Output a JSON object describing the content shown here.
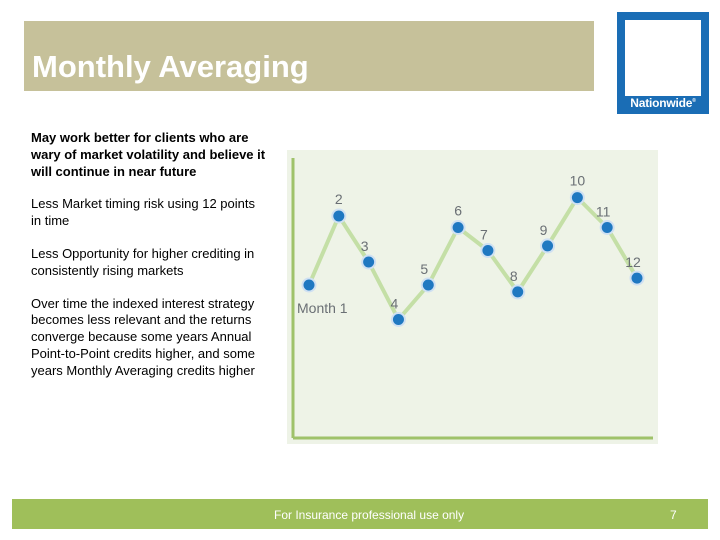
{
  "slide": {
    "title": "Monthly Averaging",
    "bullets": [
      "May work better for clients who are wary of market volatility and believe it will continue in near future",
      "Less Market timing risk using 12 points in time",
      "Less Opportunity for higher crediting in consistently rising markets",
      "Over time the indexed interest strategy becomes less relevant and the returns converge because some years Annual Point-to-Point credits higher, and some years Monthly Averaging credits higher"
    ],
    "footer": "For Insurance professional use only",
    "page_number": "7"
  },
  "logo": {
    "name": "Nationwide",
    "text": "Nationwide",
    "mark": "®"
  },
  "colors": {
    "title_bar": "#c6c19a",
    "logo_blue": "#1a6db5",
    "footer_bar": "#9fbf5a",
    "chart_bg": "#eef3e7",
    "axis": "#9fc26a",
    "line": "#c4dfa6",
    "marker": "#1f78c1",
    "marker_ring": "#cfe0f2"
  },
  "chart_data": {
    "type": "line",
    "categories": [
      "Month 1",
      "2",
      "3",
      "4",
      "5",
      "6",
      "7",
      "8",
      "9",
      "10",
      "11",
      "12"
    ],
    "series": [
      {
        "values": [
          5,
          8,
          6,
          3.5,
          5,
          7.5,
          6.5,
          4.7,
          6.7,
          8.8,
          7.5,
          5.3
        ]
      }
    ],
    "xlabel": "",
    "ylabel": "",
    "ylim": [
      0,
      10
    ],
    "grid": false
  }
}
